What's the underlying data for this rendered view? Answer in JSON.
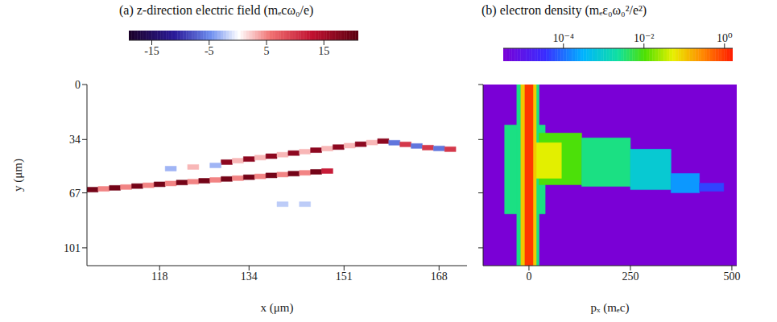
{
  "chart_data": [
    {
      "type": "heatmap",
      "title": "(a) z-direction electric field (mₑcω₀/e)",
      "x_label": "x (μm)",
      "y_label": "y (μm)",
      "xlim": [
        105,
        173
      ],
      "xticks": [
        118,
        134,
        151,
        168
      ],
      "ylim": [
        112,
        0
      ],
      "yticks": [
        0,
        34,
        67,
        101
      ],
      "grid": false,
      "cell_width": 2,
      "cell_height": 3,
      "cells": [
        [
          106,
          65,
          19
        ],
        [
          108,
          64.5,
          5
        ],
        [
          110,
          63.9,
          19
        ],
        [
          112,
          63.4,
          5
        ],
        [
          114,
          62.8,
          19
        ],
        [
          116,
          62.3,
          5
        ],
        [
          118,
          61.7,
          19
        ],
        [
          120,
          61.2,
          5
        ],
        [
          122,
          60.6,
          19
        ],
        [
          124,
          60.1,
          5
        ],
        [
          126,
          59.5,
          19
        ],
        [
          128,
          59,
          5
        ],
        [
          130,
          58.4,
          19
        ],
        [
          132,
          57.9,
          5
        ],
        [
          134,
          57.3,
          19
        ],
        [
          136,
          56.8,
          5
        ],
        [
          138,
          56.2,
          19
        ],
        [
          140,
          55.7,
          5
        ],
        [
          142,
          55.1,
          19
        ],
        [
          144,
          54.6,
          5
        ],
        [
          146,
          54,
          19
        ],
        [
          148,
          53.5,
          12
        ],
        [
          130,
          48,
          17
        ],
        [
          132,
          47.1,
          3
        ],
        [
          134,
          46.1,
          17
        ],
        [
          136,
          45.2,
          3
        ],
        [
          138,
          44.3,
          17
        ],
        [
          140,
          43.4,
          3
        ],
        [
          142,
          42.4,
          17
        ],
        [
          144,
          41.5,
          3
        ],
        [
          146,
          40.6,
          17
        ],
        [
          148,
          39.6,
          3
        ],
        [
          150,
          38.7,
          17
        ],
        [
          152,
          37.8,
          3
        ],
        [
          154,
          36.9,
          17
        ],
        [
          156,
          35.9,
          3
        ],
        [
          158,
          35,
          17
        ],
        [
          160,
          36,
          -6
        ],
        [
          162,
          37,
          10
        ],
        [
          164,
          38,
          -6
        ],
        [
          166,
          39,
          10
        ],
        [
          168,
          39.5,
          -6
        ],
        [
          170,
          40,
          10
        ],
        [
          120,
          52,
          -3
        ],
        [
          124,
          51,
          3
        ],
        [
          128,
          50,
          -3
        ],
        [
          140,
          74,
          -2
        ],
        [
          144,
          74,
          -2
        ]
      ],
      "colorbar": {
        "range": [
          -19,
          21
        ],
        "ticks": [
          -15,
          -5,
          5,
          15
        ]
      }
    },
    {
      "type": "heatmap",
      "title": "(b) electron density (mₑε₀ω₀²/e²)",
      "x_label": "pₓ (mₑc)",
      "xlim": [
        -113,
        512
      ],
      "xticks": [
        0,
        250,
        500
      ],
      "ylim": [
        112,
        0
      ],
      "yticks": [
        0,
        34,
        67,
        101
      ],
      "grid": false,
      "tick_labels": "x",
      "cells": [
        [
          -60,
          40,
          25,
          80,
          0.003
        ],
        [
          -30,
          25,
          0,
          112,
          0.003
        ],
        [
          25,
          130,
          30,
          62,
          0.01
        ],
        [
          130,
          250,
          33,
          63,
          0.003
        ],
        [
          250,
          350,
          40,
          65,
          0.0008
        ],
        [
          350,
          420,
          55,
          67,
          0.0002
        ],
        [
          420,
          480,
          61,
          66,
          5e-05
        ],
        [
          10,
          80,
          36,
          58,
          0.05
        ],
        [
          -20,
          18,
          0,
          112,
          0.1
        ],
        [
          -10,
          10,
          0,
          112,
          1
        ]
      ],
      "colorbar": {
        "range": [
          3.2e-06,
          1.6
        ],
        "ticks": [
          {
            "value": 0.0001,
            "label": "10⁻⁴"
          },
          {
            "value": 0.01,
            "label": "10⁻²"
          },
          {
            "value": 1,
            "label": "10⁰"
          }
        ],
        "log": true
      }
    }
  ]
}
